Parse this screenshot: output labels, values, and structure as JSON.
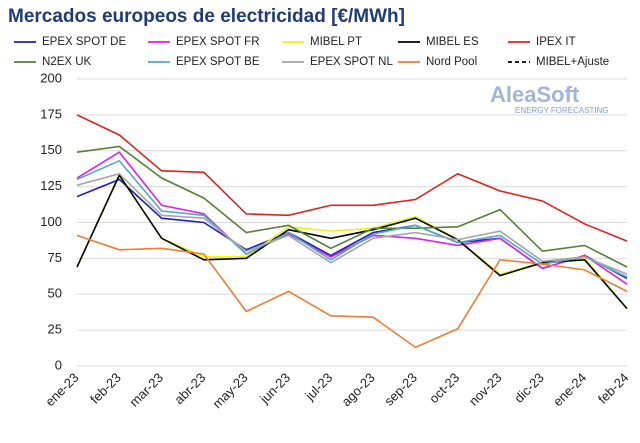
{
  "chart_data": {
    "type": "line",
    "title": "Mercados europeos de electricidad [€/MWh]",
    "logo": "AleaSoft",
    "logo_tagline": "ENERGY FORECASTING",
    "categories": [
      "ene-23",
      "feb-23",
      "mar-23",
      "abr-23",
      "may-23",
      "jun-23",
      "jul-23",
      "ago-23",
      "sep-23",
      "oct-23",
      "nov-23",
      "dic-23",
      "ene-24",
      "feb-24"
    ],
    "ylim": [
      0,
      200
    ],
    "yticks": [
      0,
      25,
      50,
      75,
      100,
      125,
      150,
      175,
      200
    ],
    "grid": true,
    "series": [
      {
        "name": "EPEX SPOT DE",
        "color": "#1f1fbf",
        "values": [
          118,
          130,
          103,
          100,
          81,
          93,
          77,
          93,
          98,
          86,
          89,
          68,
          77,
          61
        ]
      },
      {
        "name": "EPEX SPOT FR",
        "color": "#e020e0",
        "values": [
          131,
          149,
          112,
          106,
          78,
          92,
          76,
          91,
          89,
          84,
          89,
          68,
          77,
          57
        ]
      },
      {
        "name": "MIBEL PT",
        "color": "#f2f200",
        "values": [
          69,
          133,
          89,
          76,
          76,
          97,
          94,
          96,
          104,
          88,
          64,
          72,
          75,
          40
        ]
      },
      {
        "name": "MIBEL ES",
        "color": "#000000",
        "values": [
          69,
          133,
          89,
          74,
          75,
          95,
          89,
          95,
          103,
          88,
          63,
          72,
          74,
          40
        ]
      },
      {
        "name": "IPEX IT",
        "color": "#e02020",
        "values": [
          175,
          161,
          136,
          135,
          106,
          105,
          112,
          112,
          116,
          134,
          122,
          115,
          99,
          87
        ]
      },
      {
        "name": "N2EX UK",
        "color": "#548235",
        "values": [
          149,
          153,
          131,
          117,
          93,
          98,
          82,
          96,
          96,
          97,
          109,
          80,
          84,
          69
        ]
      },
      {
        "name": "EPEX SPOT BE",
        "color": "#4bacc6",
        "values": [
          130,
          143,
          108,
          105,
          78,
          93,
          74,
          92,
          98,
          86,
          91,
          71,
          76,
          62
        ]
      },
      {
        "name": "EPEX SPOT NL",
        "color": "#a6a6a6",
        "values": [
          126,
          134,
          105,
          103,
          80,
          91,
          72,
          89,
          93,
          88,
          94,
          73,
          76,
          64
        ]
      },
      {
        "name": "Nord Pool",
        "color": "#ed7d31",
        "values": [
          91,
          81,
          82,
          78,
          38,
          52,
          35,
          34,
          13,
          26,
          74,
          71,
          67,
          52
        ]
      },
      {
        "name": "MIBEL+Ajuste",
        "color": "#000000",
        "dashed": true,
        "values": [
          null,
          null,
          null,
          null,
          null,
          null,
          null,
          null,
          null,
          null,
          null,
          null,
          null,
          null
        ]
      }
    ]
  }
}
